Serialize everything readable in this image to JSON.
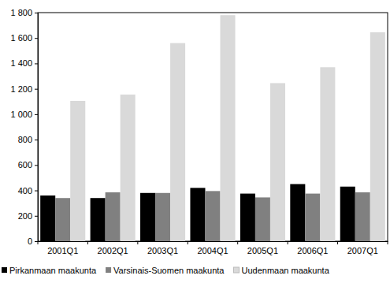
{
  "chart_data": {
    "type": "bar",
    "categories": [
      "2001Q1",
      "2002Q1",
      "2003Q1",
      "2004Q1",
      "2005Q1",
      "2006Q1",
      "2007Q1"
    ],
    "series": [
      {
        "name": "Pirkanmaan maakunta",
        "color": "#000000",
        "values": [
          360,
          340,
          380,
          420,
          375,
          450,
          430
        ]
      },
      {
        "name": "Varsinais-Suomen maakunta",
        "color": "#808080",
        "values": [
          340,
          385,
          380,
          395,
          345,
          375,
          385
        ]
      },
      {
        "name": "Uudenmaan maakunta",
        "color": "#d9d9d9",
        "values": [
          1105,
          1155,
          1560,
          1780,
          1245,
          1370,
          1645
        ]
      }
    ],
    "ylim": [
      0,
      1800
    ],
    "yticks": [
      0,
      200,
      400,
      600,
      800,
      {
        "value": 1000,
        "label": "1 000"
      },
      {
        "value": 1200,
        "label": "1 200"
      },
      {
        "value": 1400,
        "label": "1 400"
      },
      {
        "value": 1600,
        "label": "1 600"
      },
      {
        "value": 1800,
        "label": "1 800"
      }
    ],
    "grid": false,
    "legend": "bottom"
  }
}
